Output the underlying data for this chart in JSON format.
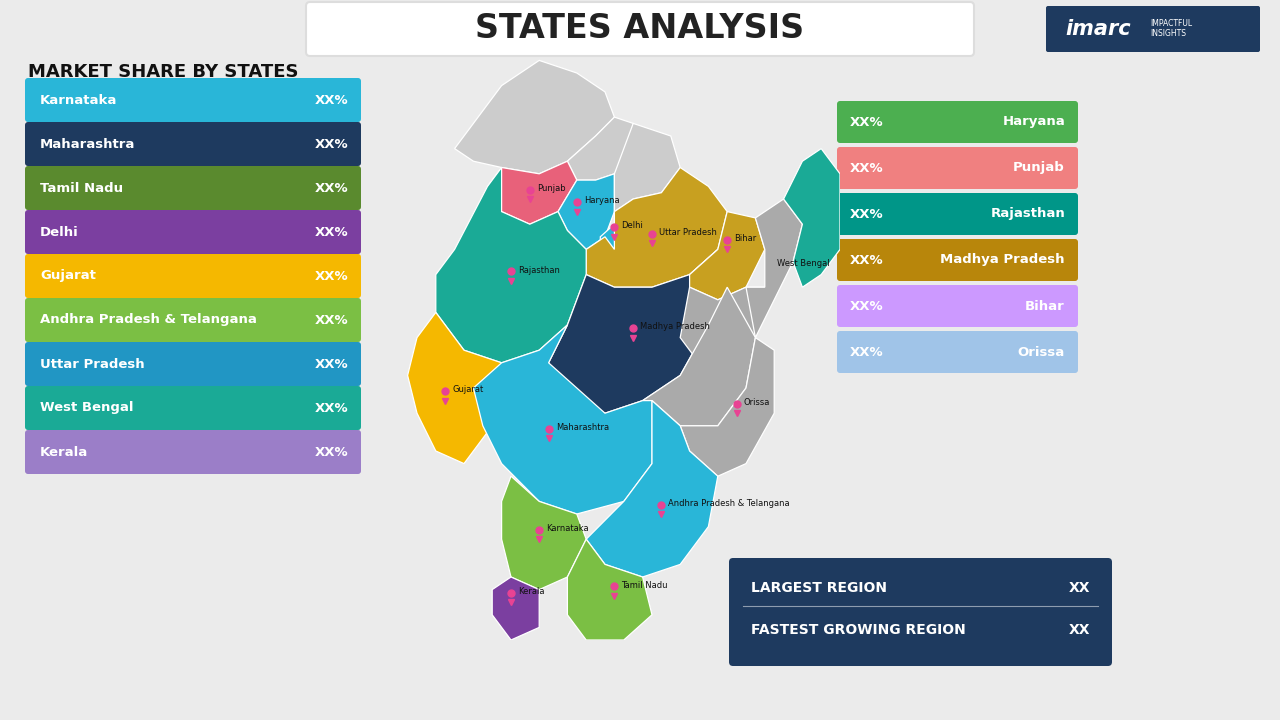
{
  "title": "STATES ANALYSIS",
  "title_fontsize": 24,
  "background_color": "#ebebeb",
  "left_panel_title": "MARKET SHARE BY STATES",
  "left_bars": [
    {
      "label": "Karnataka",
      "value": "XX%",
      "color": "#29b6d8"
    },
    {
      "label": "Maharashtra",
      "value": "XX%",
      "color": "#1e3a5f"
    },
    {
      "label": "Tamil Nadu",
      "value": "XX%",
      "color": "#5a8a2e"
    },
    {
      "label": "Delhi",
      "value": "XX%",
      "color": "#7b3fa0"
    },
    {
      "label": "Gujarat",
      "value": "XX%",
      "color": "#f5b800"
    },
    {
      "label": "Andhra Pradesh & Telangana",
      "value": "XX%",
      "color": "#7bbf44"
    },
    {
      "label": "Uttar Pradesh",
      "value": "XX%",
      "color": "#2196c4"
    },
    {
      "label": "West Bengal",
      "value": "XX%",
      "color": "#1aaa96"
    },
    {
      "label": "Kerala",
      "value": "XX%",
      "color": "#9b7ec8"
    }
  ],
  "right_bars": [
    {
      "label": "Haryana",
      "value": "XX%",
      "color": "#4caf50"
    },
    {
      "label": "Punjab",
      "value": "XX%",
      "color": "#f08080"
    },
    {
      "label": "Rajasthan",
      "value": "XX%",
      "color": "#009688"
    },
    {
      "label": "Madhya Pradesh",
      "value": "XX%",
      "color": "#b8860b"
    },
    {
      "label": "Bihar",
      "value": "XX%",
      "color": "#cc99ff"
    },
    {
      "label": "Orissa",
      "value": "XX%",
      "color": "#a0c4e8"
    }
  ],
  "bottom_box": {
    "bg_color": "#1e3a5f",
    "text_color": "#ffffff",
    "items": [
      {
        "label": "LARGEST REGION",
        "value": "XX"
      },
      {
        "label": "FASTEST GROWING REGION",
        "value": "XX"
      }
    ]
  },
  "state_colors": {
    "JK": "#cccccc",
    "HP": "#cccccc",
    "Punjab": "#e8617a",
    "Haryana": "#29b6d8",
    "Delhi": "#29b6d8",
    "Uttarakhand": "#cccccc",
    "UP": "#c8a020",
    "Rajasthan": "#1aaa96",
    "Gujarat": "#f5b800",
    "MP": "#1e3a5f",
    "Bihar": "#c8a020",
    "Jharkhand": "#aaaaaa",
    "WB": "#aaaaaa",
    "Maharashtra": "#29b6d8",
    "Chhattisgarh": "#aaaaaa",
    "Orissa": "#aaaaaa",
    "AP": "#29b6d8",
    "Karnataka": "#7bbf44",
    "TN": "#7bbf44",
    "Kerala": "#7b3fa0",
    "Northeast": "#1aaa96"
  }
}
